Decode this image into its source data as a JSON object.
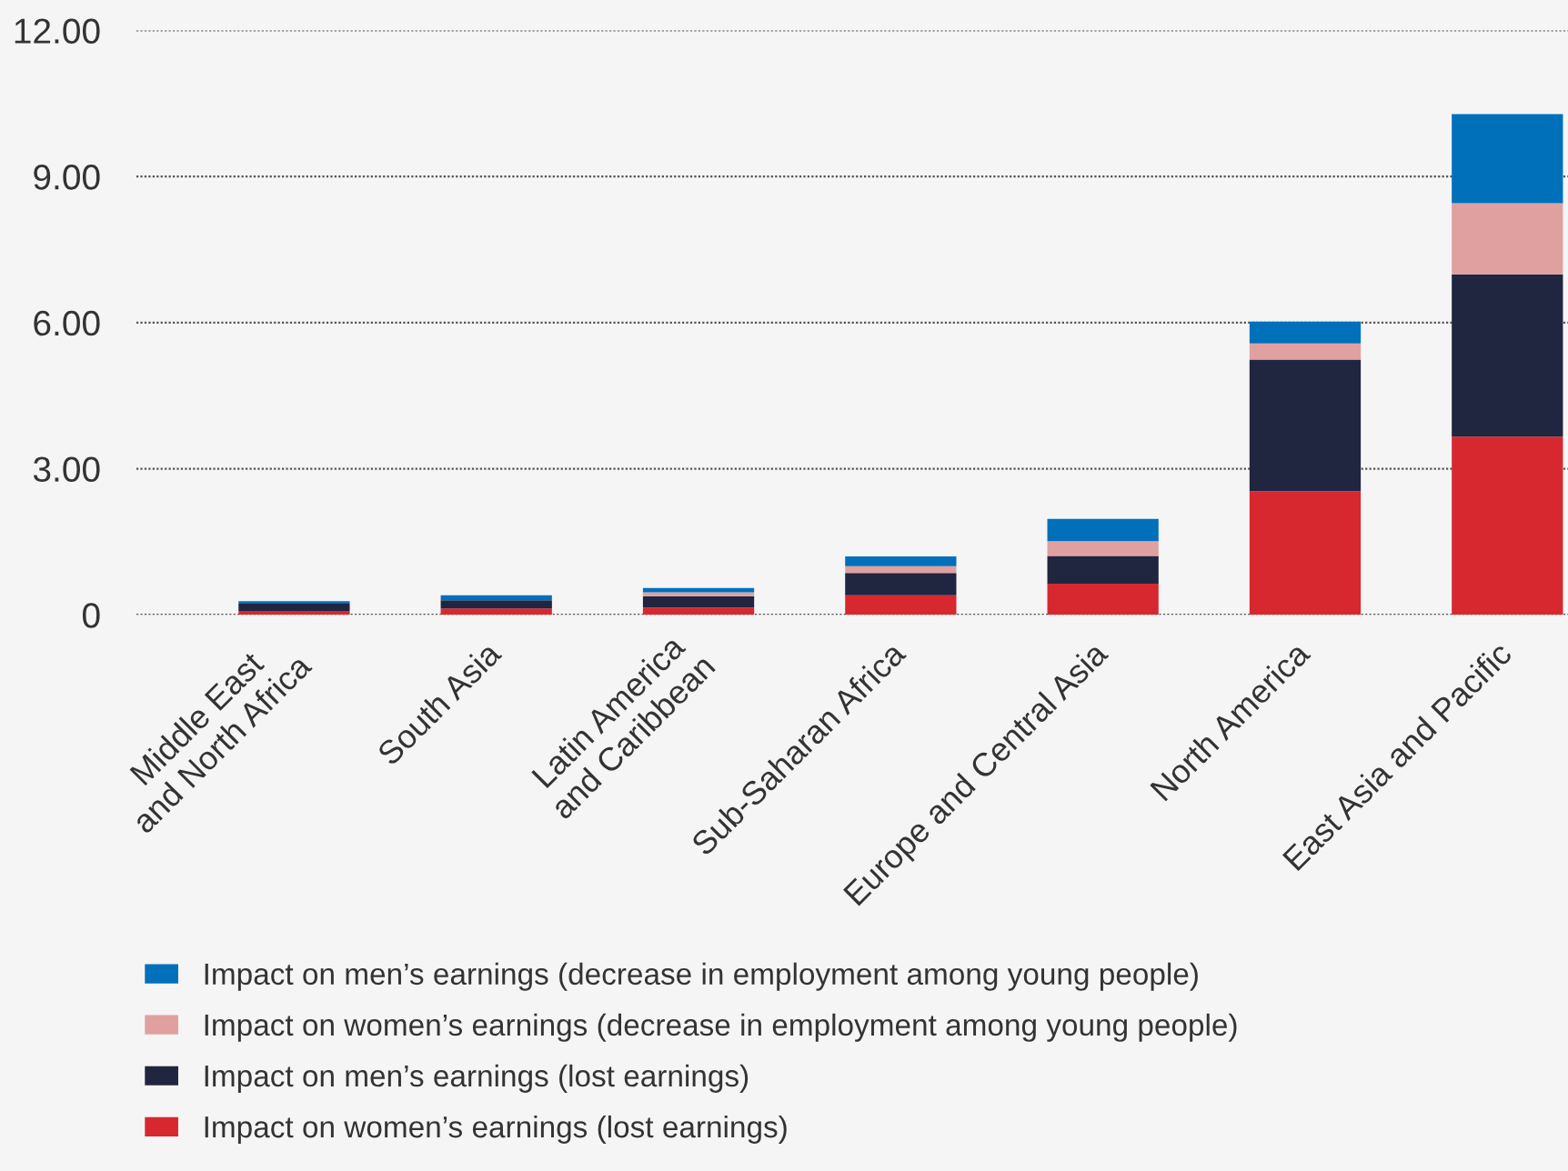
{
  "chart_data": {
    "type": "bar",
    "stacked": true,
    "categories": [
      "Middle East\nand North Africa",
      "South Asia",
      "Latin America\nand Caribbean",
      "Sub-Saharan Africa",
      "Europe and Central Asia",
      "North America",
      "East Asia and Pacific"
    ],
    "series": [
      {
        "name": "Impact on women’s earnings (lost earnings)",
        "color": "#d7282f",
        "values": [
          0.08,
          0.13,
          0.15,
          0.4,
          0.64,
          2.54,
          3.66
        ]
      },
      {
        "name": "Impact on men’s earnings (lost earnings)",
        "color": "#202540",
        "values": [
          0.15,
          0.17,
          0.23,
          0.46,
          0.57,
          2.7,
          3.33
        ]
      },
      {
        "name": "Impact on women’s earnings (decrease in employment among young people)",
        "color": "#e0a0a0",
        "values": [
          null,
          null,
          0.08,
          0.14,
          0.3,
          0.33,
          1.46
        ]
      },
      {
        "name": "Impact on men’s earnings (decrease in employment among young people)",
        "color": "#0070bb",
        "values": [
          0.05,
          0.1,
          0.09,
          0.2,
          0.46,
          0.45,
          1.83
        ]
      }
    ],
    "ylim": [
      0,
      12
    ],
    "yticks": [
      0,
      {
        "value": 3,
        "label": "3.00"
      },
      {
        "value": 6,
        "label": "6.00"
      },
      {
        "value": 9,
        "label": "9.00"
      },
      {
        "value": 12,
        "label": "12.00"
      }
    ],
    "grid": "y",
    "legend": "bottom"
  }
}
